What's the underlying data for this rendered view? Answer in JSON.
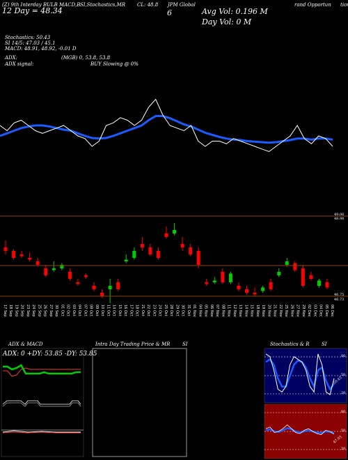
{
  "header": {
    "line1": [
      "(Z) 9th Interday BULB MACD,B",
      "SI,Stochastics,MR",
      "CL: 48.8",
      "JPM Global",
      "rand Opportun",
      "tion"
    ],
    "line2": [
      "12  Day = 48.34",
      "6"
    ],
    "avg_vol": "Avg Vol: 0.196  M",
    "day_vol": "Day Vol: 0   M",
    "stochastics": "Stochastics: 50.43",
    "si": "SI 14/5: 47.03 / 45.1",
    "macd": "MACD: 48.91, 48.92, -0.01 D",
    "adx_label": "ADX:",
    "adx_vals": "(MGB) 0, 53.8, 53.8",
    "adx_signal": "ADX  signal:",
    "buy": "BUY Slowing @ 0%"
  },
  "price_axis": {
    "top_a": "49.06",
    "top_b": "48.98",
    "bot_a": "46.75",
    "bot_b": "46.73"
  },
  "dates": [
    "17 Sep",
    "18 Sep",
    "19 Sep",
    "20 Sep",
    "23 Sep",
    "24 Sep",
    "25 Sep",
    "26 Sep",
    "27 Sep",
    "30 Sep",
    "01 Oct",
    "02 Oct",
    "03 Oct",
    "04 Oct",
    "07 Oct",
    "08 Oct",
    "09 Oct",
    "10 Oct",
    "11 Oct",
    "14 Oct",
    "15 Oct",
    "16 Oct",
    "17 Oct",
    "18 Oct",
    "21 Oct",
    "22 Oct",
    "23 Oct",
    "24 Oct",
    "25 Oct",
    "28 Oct",
    "29 Oct",
    "30 Oct",
    "31 Oct",
    "01 Nov",
    "04 Nov",
    "05 Nov",
    "06 Nov",
    "07 Nov",
    "08 Nov",
    "11 Nov",
    "12 Nov",
    "13 Nov",
    "14 Nov",
    "15 Nov",
    "18 Nov",
    "19 Nov",
    "20 Nov",
    "21 Nov",
    "22 Nov",
    "25 Nov",
    "26 Nov",
    "27 Nov",
    "29 Nov",
    "02 Dec",
    "03 Dec",
    "04 Dec",
    "05 Dec",
    "06 Dec"
  ],
  "panels": {
    "adx_title": "ADX  & MACD",
    "adx_readout": "ADX: 0  +DY: 53.85  -DY: 53.85",
    "intra_title": "Intra  Day Trading Price  & MR",
    "intra_si": "SI",
    "stoch_title": "Stochastics & R",
    "stoch_si": "SI",
    "stoch_ticks": [
      "80",
      "50",
      "20"
    ],
    "stoch_val": "50.43",
    "rsi_ticks": [
      "80",
      "50",
      "20"
    ],
    "rsi_val": "47.03"
  },
  "colors": {
    "up": "#00cc00",
    "down": "#ff0000",
    "ma": "#1a5cff",
    "line": "#ffffff",
    "rsi_bg": "#8b0000",
    "stoch_bg": "#000060"
  },
  "chart_data": [
    {
      "type": "line",
      "series": [
        {
          "values": [
            48.6,
            48.5,
            48.65,
            48.7,
            48.6,
            48.5,
            48.45,
            48.5,
            48.55,
            48.6,
            48.5,
            48.4,
            48.35,
            48.2,
            48.3,
            48.6,
            48.65,
            48.75,
            48.7,
            48.6,
            48.7,
            48.95,
            49.1,
            48.8,
            48.6,
            48.55,
            48.5,
            48.6,
            48.3,
            48.2,
            48.3,
            48.3,
            48.25,
            48.35,
            48.3,
            48.25,
            48.2,
            48.15,
            48.1,
            48.2,
            48.3,
            48.4,
            48.6,
            48.35,
            48.25,
            48.4,
            48.35,
            48.2
          ]
        },
        {
          "values": [
            48.4,
            48.45,
            48.5,
            48.55,
            48.58,
            48.6,
            48.6,
            48.58,
            48.55,
            48.52,
            48.5,
            48.45,
            48.4,
            48.36,
            48.35,
            48.36,
            48.4,
            48.45,
            48.5,
            48.55,
            48.6,
            48.7,
            48.78,
            48.78,
            48.74,
            48.68,
            48.62,
            48.58,
            48.52,
            48.46,
            48.42,
            48.38,
            48.35,
            48.33,
            48.32,
            48.3,
            48.29,
            48.28,
            48.27,
            48.28,
            48.3,
            48.32,
            48.35,
            48.35,
            48.33,
            48.35,
            48.35,
            48.33
          ]
        }
      ]
    },
    {
      "type": "bar",
      "ylim": [
        46.7,
        49.1
      ],
      "series": [
        {
          "values": [
            [
              48.2,
              48.4,
              48.1,
              48.0
            ],
            [
              48.1,
              48.15,
              47.9,
              47.85
            ],
            [
              48.0,
              48.1,
              47.95,
              47.9
            ],
            [
              47.9,
              48.05,
              47.85,
              47.8
            ],
            [
              47.8,
              47.9,
              47.7,
              47.65
            ],
            [
              47.6,
              47.7,
              47.4,
              47.35
            ],
            [
              47.55,
              47.8,
              47.6,
              47.5
            ],
            [
              47.6,
              47.75,
              47.7,
              47.55
            ],
            [
              47.5,
              47.6,
              47.3,
              47.25
            ],
            [
              47.2,
              47.3,
              47.15,
              47.1
            ],
            [
              47.4,
              47.45,
              47.35,
              47.3
            ],
            [
              47.1,
              47.2,
              47.0,
              46.95
            ],
            [
              46.9,
              47.0,
              46.8,
              46.75
            ],
            [
              47.0,
              47.3,
              47.1,
              46.6
            ],
            [
              47.2,
              47.3,
              47.0,
              46.95
            ],
            [
              47.8,
              48.0,
              47.85,
              47.75
            ],
            [
              47.9,
              48.2,
              48.1,
              47.85
            ],
            [
              48.3,
              48.5,
              48.2,
              48.1
            ],
            [
              48.2,
              48.3,
              48.0,
              47.95
            ],
            [
              48.1,
              48.2,
              47.9,
              47.85
            ],
            [
              48.6,
              48.8,
              48.5,
              48.45
            ],
            [
              48.6,
              48.9,
              48.7,
              48.55
            ],
            [
              48.3,
              48.5,
              48.2,
              48.1
            ],
            [
              48.2,
              48.3,
              48.0,
              47.95
            ],
            [
              48.1,
              48.2,
              47.7,
              47.6
            ],
            [
              47.2,
              47.3,
              47.15,
              47.1
            ],
            [
              47.2,
              47.35,
              47.25,
              47.15
            ],
            [
              47.5,
              47.6,
              47.2,
              47.15
            ],
            [
              47.2,
              47.5,
              47.45,
              47.15
            ],
            [
              47.1,
              47.2,
              47.0,
              46.95
            ],
            [
              47.0,
              47.1,
              46.9,
              46.85
            ],
            [
              46.9,
              47.05,
              46.85,
              46.8
            ],
            [
              46.95,
              47.1,
              47.05,
              46.9
            ],
            [
              47.2,
              47.3,
              47.0,
              46.95
            ],
            [
              47.4,
              47.6,
              47.5,
              47.35
            ],
            [
              47.7,
              47.9,
              47.8,
              47.65
            ],
            [
              47.75,
              47.8,
              47.55,
              47.5
            ],
            [
              47.6,
              47.7,
              47.1,
              47.05
            ],
            [
              47.4,
              47.5,
              47.3,
              47.25
            ],
            [
              47.1,
              47.3,
              47.25,
              47.05
            ],
            [
              47.2,
              47.3,
              47.05,
              47.0
            ]
          ]
        }
      ]
    },
    {
      "type": "line",
      "series": [
        {
          "values": [
            57,
            57,
            55,
            56,
            58,
            52,
            52,
            52,
            52,
            53,
            52,
            52,
            52,
            52,
            52,
            52,
            53,
            53
          ]
        },
        {
          "values": [
            54,
            54,
            50,
            51,
            55,
            56,
            55,
            55,
            55,
            55,
            55,
            55,
            55,
            55,
            55,
            55,
            55,
            55
          ]
        }
      ]
    },
    {
      "type": "line",
      "series": [
        {
          "values": [
            90,
            85,
            60,
            25,
            20,
            30,
            70,
            85,
            80,
            75,
            60,
            30,
            20,
            90,
            70,
            20,
            15,
            45
          ]
        },
        {
          "values": [
            75,
            80,
            70,
            45,
            30,
            30,
            50,
            70,
            78,
            75,
            65,
            45,
            30,
            60,
            65,
            40,
            25,
            35
          ]
        }
      ]
    },
    {
      "type": "line",
      "series": [
        {
          "values": [
            55,
            58,
            48,
            50,
            55,
            62,
            55,
            48,
            46,
            52,
            55,
            50,
            46,
            44,
            52,
            50,
            45
          ]
        },
        {
          "values": [
            52,
            54,
            50,
            49,
            52,
            56,
            54,
            50,
            48,
            50,
            52,
            50,
            48,
            47,
            50,
            49,
            47
          ]
        }
      ]
    }
  ]
}
